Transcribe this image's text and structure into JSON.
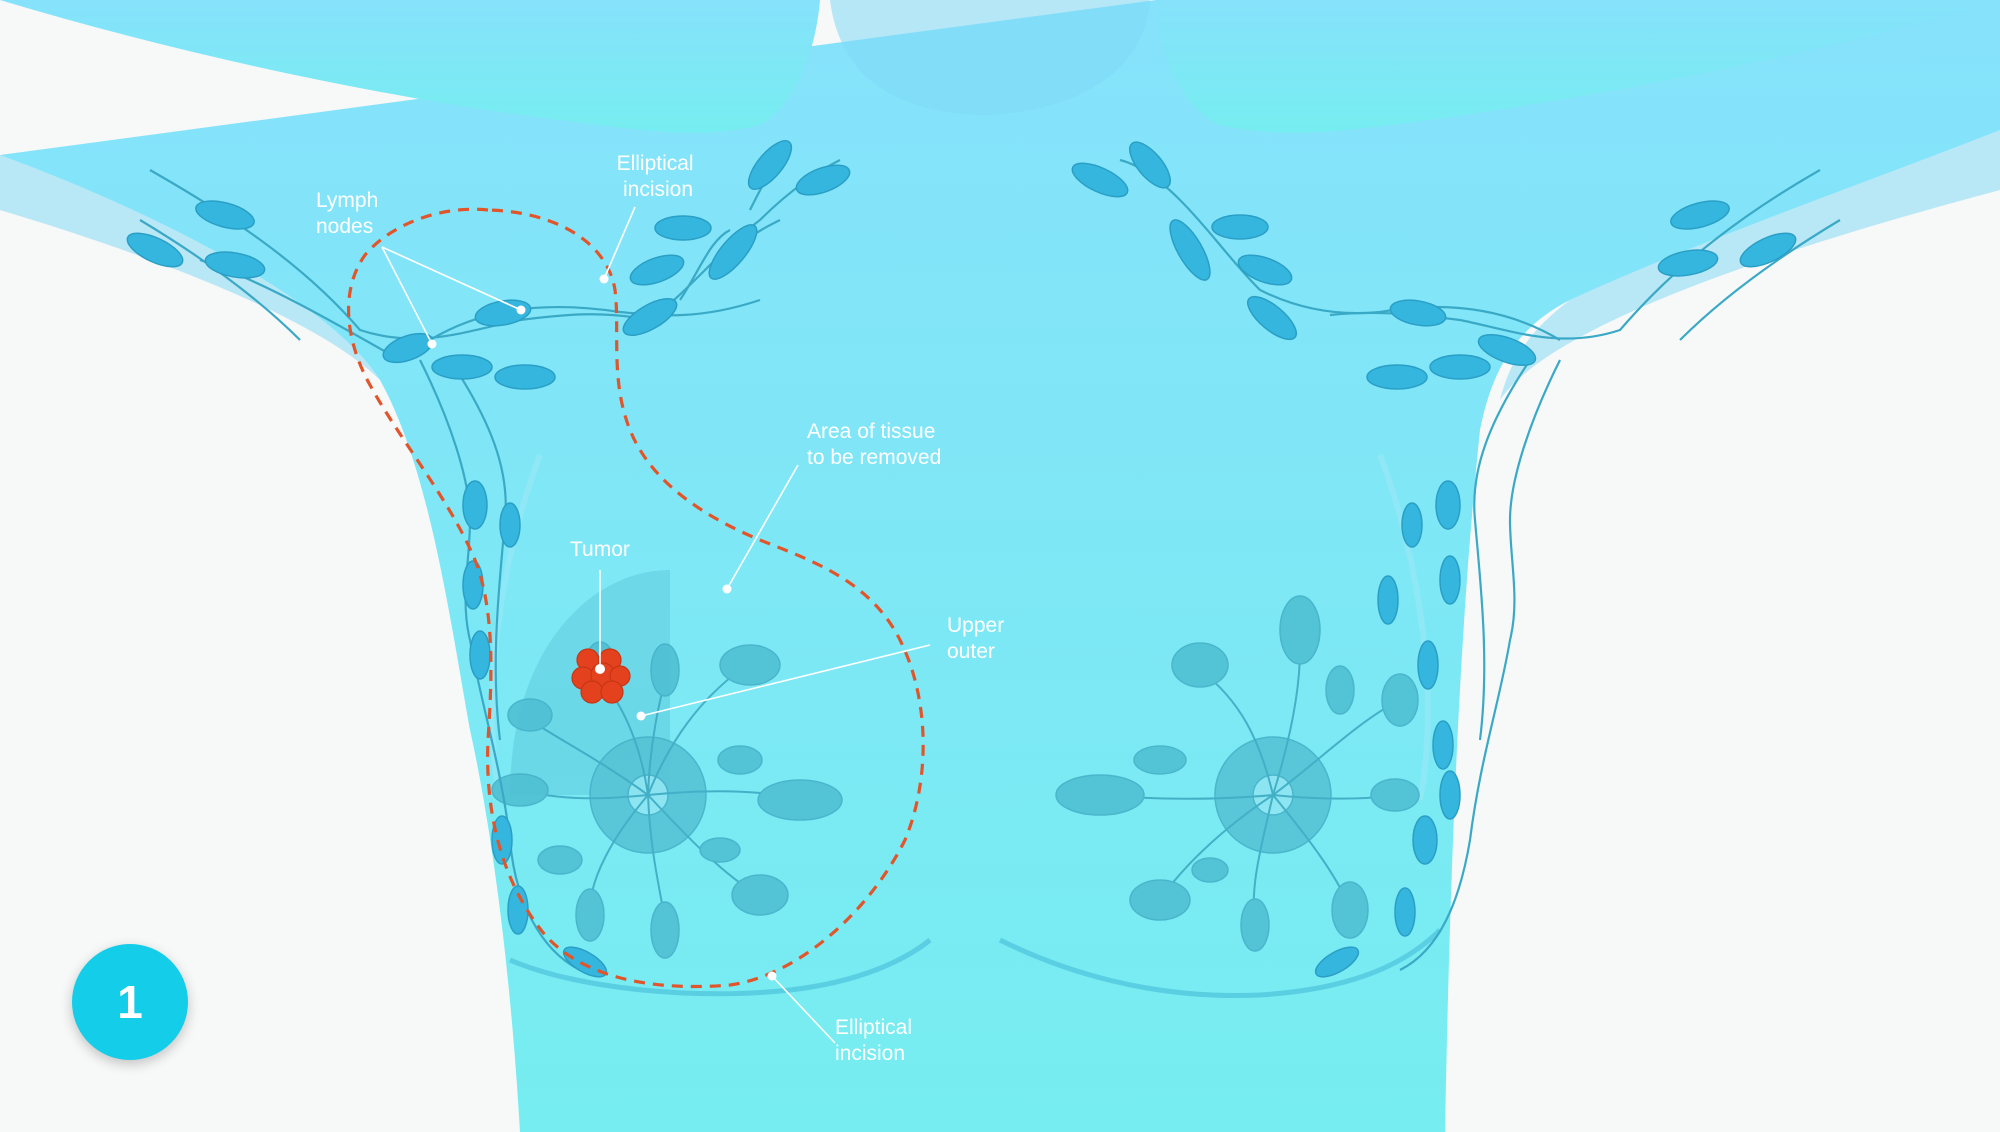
{
  "labels": {
    "lymph_nodes": [
      "Lymph",
      "nodes"
    ],
    "elliptical_incision_top": [
      "Elliptical",
      "incision"
    ],
    "area_of_tissue": [
      "Area of tissue",
      "to be removed"
    ],
    "tumor": "Tumor",
    "upper_outer": [
      "Upper",
      "outer"
    ],
    "elliptical_incision_bottom": [
      "Elliptical",
      "incision"
    ]
  },
  "step_number": "1",
  "colors": {
    "background": "#f7f8f8",
    "body_top": "#86e2fb",
    "body_bottom": "#76edf0",
    "lymph_node": "#35b6de",
    "gland": "#4fbfd3",
    "incision_line": "#e2552a",
    "tumor": "#e4421f",
    "badge": "#14cde8"
  }
}
